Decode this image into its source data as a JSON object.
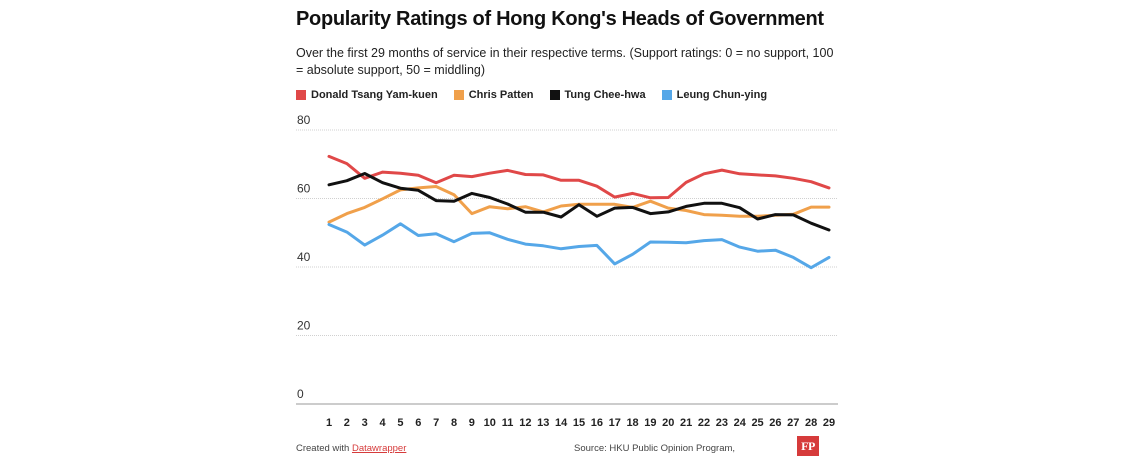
{
  "chart_data": {
    "type": "line",
    "title": "Popularity Ratings of Hong Kong's Heads of Government",
    "subtitle": "Over the first 29 months of service in their respective terms. (Support ratings: 0 = no support, 100 = absolute support, 50 = middling)",
    "xlabel": "",
    "ylabel": "",
    "ylim": [
      0,
      80
    ],
    "yticks": [
      80,
      60,
      40,
      20,
      0
    ],
    "categories": [
      "1",
      "2",
      "3",
      "4",
      "5",
      "6",
      "7",
      "8",
      "9",
      "10",
      "11",
      "12",
      "13",
      "14",
      "15",
      "16",
      "17",
      "18",
      "19",
      "20",
      "21",
      "22",
      "23",
      "24",
      "25",
      "26",
      "27",
      "28",
      "29"
    ],
    "series": [
      {
        "name": "Donald Tsang Yam-kuen",
        "color": "#e04848",
        "values": [
          72.3,
          70.2,
          65.9,
          67.7,
          67.4,
          66.8,
          64.6,
          66.8,
          66.4,
          67.4,
          68.2,
          67.0,
          66.9,
          65.3,
          65.3,
          63.6,
          60.4,
          61.5,
          60.2,
          60.3,
          64.7,
          67.2,
          68.3,
          67.2,
          66.9,
          66.6,
          65.9,
          64.9,
          63.1
        ]
      },
      {
        "name": "Chris Patten",
        "color": "#f0a04b",
        "values": [
          53.1,
          55.6,
          57.4,
          59.9,
          62.5,
          63.1,
          63.5,
          61.1,
          55.6,
          57.6,
          57.0,
          57.6,
          56.1,
          57.8,
          58.3,
          58.3,
          58.3,
          57.4,
          59.2,
          57.2,
          56.5,
          55.3,
          55.1,
          54.8,
          54.8,
          55.1,
          55.4,
          57.5,
          57.5
        ]
      },
      {
        "name": "Tung Chee-hwa",
        "color": "#111111",
        "values": [
          64.0,
          65.2,
          67.3,
          64.6,
          63.0,
          62.4,
          59.4,
          59.2,
          61.5,
          60.3,
          58.4,
          56.0,
          56.0,
          54.6,
          58.2,
          54.8,
          57.2,
          57.4,
          55.6,
          56.1,
          57.7,
          58.6,
          58.6,
          57.3,
          54.0,
          55.3,
          55.2,
          52.8,
          50.8
        ]
      },
      {
        "name": "Leung Chun-ying",
        "color": "#55a7e8",
        "values": [
          52.4,
          50.2,
          46.4,
          49.3,
          52.6,
          49.2,
          49.7,
          47.4,
          49.8,
          50.0,
          48.1,
          46.7,
          46.2,
          45.3,
          46.0,
          46.3,
          40.9,
          43.7,
          47.3,
          47.2,
          47.1,
          47.7,
          48.0,
          45.8,
          44.6,
          44.9,
          42.8,
          39.8,
          42.8
        ]
      }
    ]
  },
  "legend": {
    "items": [
      {
        "label": "Donald Tsang Yam-kuen",
        "color": "#e04848"
      },
      {
        "label": "Chris Patten",
        "color": "#f0a04b"
      },
      {
        "label": "Tung Chee-hwa",
        "color": "#111111"
      },
      {
        "label": "Leung Chun-ying",
        "color": "#55a7e8"
      }
    ]
  },
  "footer": {
    "created_prefix": "Created with ",
    "created_link": "Datawrapper",
    "source": "Source: HKU Public Opinion Program,",
    "logo": "FP"
  },
  "colors": {
    "accent": "#d63b3b",
    "grid": "#d0d0d0"
  }
}
